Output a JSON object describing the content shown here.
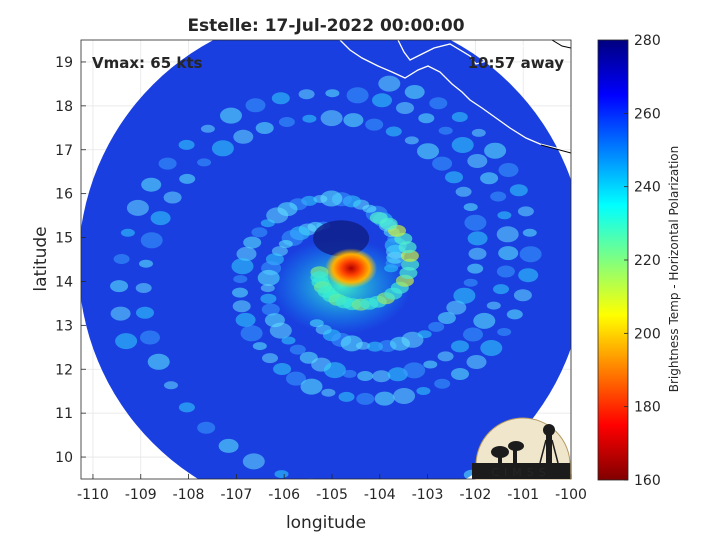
{
  "chart_data": {
    "type": "heatmap",
    "title": "Estelle: 17-Jul-2022 00:00:00",
    "xlabel": "longitude",
    "ylabel": "latitude",
    "xlim": [
      -110.25,
      -100
    ],
    "ylim": [
      9.5,
      19.5
    ],
    "x_ticks": [
      -110,
      -109,
      -108,
      -107,
      -106,
      -105,
      -104,
      -103,
      -102,
      -101,
      -100
    ],
    "y_ticks": [
      10,
      11,
      12,
      13,
      14,
      15,
      16,
      17,
      18,
      19
    ],
    "grid": true,
    "annotations": {
      "vmax": "Vmax: 65 kts",
      "time_away": "10:57 away"
    },
    "colorbar": {
      "label": "Brightness Temp - Horizontal Polarization",
      "range": [
        160,
        280
      ],
      "ticks": [
        160,
        180,
        200,
        220,
        240,
        260,
        280
      ],
      "colormap": "jet"
    },
    "storm_center": {
      "lon": -104.6,
      "lat": 14.3
    },
    "warm_core_max_temp": 175,
    "swath": {
      "center_lon": -105.0,
      "center_lat": 14.4,
      "radius_deg": 5.3
    },
    "logo_text": "CIMSS"
  },
  "colors": {
    "background_swath": "#1a3fe0",
    "coastline": "#ffffff",
    "axis": "#262626"
  }
}
